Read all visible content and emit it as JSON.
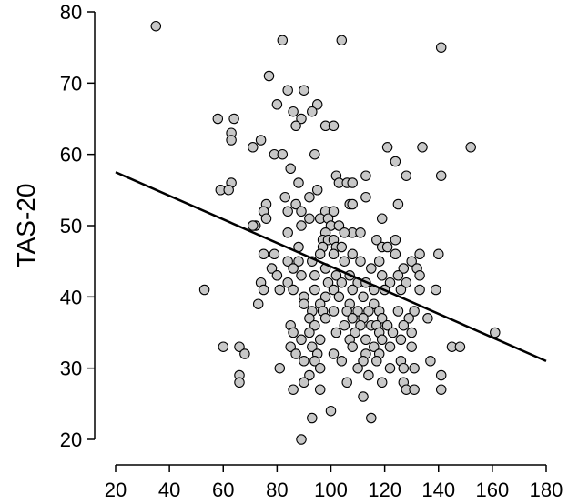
{
  "chart_data": {
    "type": "scatter",
    "title": "",
    "xlabel": "",
    "ylabel": "TAS-20",
    "xlim": [
      20,
      180
    ],
    "ylim": [
      20,
      80
    ],
    "x_ticks": [
      20,
      40,
      60,
      80,
      100,
      120,
      140,
      160,
      180
    ],
    "y_ticks": [
      20,
      30,
      40,
      50,
      60,
      70,
      80
    ],
    "grid": false,
    "legend": "none",
    "colors": {
      "point_fill": "#c8c8c8",
      "point_stroke": "#000000",
      "line": "#000000",
      "axis": "#000000"
    },
    "series": [
      {
        "marker": "circle",
        "points": [
          [
            35,
            78
          ],
          [
            82,
            76
          ],
          [
            104,
            76
          ],
          [
            141,
            75
          ],
          [
            77,
            71
          ],
          [
            84,
            69
          ],
          [
            90,
            69
          ],
          [
            80,
            67
          ],
          [
            86,
            66
          ],
          [
            95,
            67
          ],
          [
            89,
            65
          ],
          [
            93,
            66
          ],
          [
            58,
            65
          ],
          [
            64,
            65
          ],
          [
            98,
            64
          ],
          [
            101,
            64
          ],
          [
            63,
            63
          ],
          [
            63,
            62
          ],
          [
            87,
            64
          ],
          [
            74,
            62
          ],
          [
            71,
            61
          ],
          [
            121,
            61
          ],
          [
            134,
            61
          ],
          [
            152,
            61
          ],
          [
            79,
            60
          ],
          [
            82,
            60
          ],
          [
            94,
            60
          ],
          [
            124,
            59
          ],
          [
            85,
            58
          ],
          [
            128,
            57
          ],
          [
            102,
            57
          ],
          [
            113,
            57
          ],
          [
            141,
            57
          ],
          [
            63,
            56
          ],
          [
            88,
            56
          ],
          [
            103,
            56
          ],
          [
            106,
            56
          ],
          [
            108,
            56
          ],
          [
            59,
            55
          ],
          [
            62,
            55
          ],
          [
            95,
            55
          ],
          [
            83,
            54
          ],
          [
            92,
            54
          ],
          [
            113,
            54
          ],
          [
            76,
            53
          ],
          [
            87,
            53
          ],
          [
            107,
            53
          ],
          [
            108,
            53
          ],
          [
            125,
            53
          ],
          [
            84,
            52
          ],
          [
            89,
            52
          ],
          [
            98,
            52
          ],
          [
            101,
            52
          ],
          [
            75,
            52
          ],
          [
            96,
            51
          ],
          [
            99,
            51
          ],
          [
            119,
            51
          ],
          [
            76,
            51
          ],
          [
            92,
            51
          ],
          [
            72,
            50
          ],
          [
            89,
            50
          ],
          [
            100,
            50
          ],
          [
            103,
            50
          ],
          [
            71,
            50
          ],
          [
            98,
            49
          ],
          [
            108,
            49
          ],
          [
            111,
            49
          ],
          [
            84,
            49
          ],
          [
            105,
            49
          ],
          [
            97,
            48
          ],
          [
            99,
            48
          ],
          [
            101,
            48
          ],
          [
            117,
            48
          ],
          [
            124,
            48
          ],
          [
            97,
            47
          ],
          [
            102,
            47
          ],
          [
            104,
            47
          ],
          [
            119,
            47
          ],
          [
            88,
            47
          ],
          [
            121,
            47
          ],
          [
            75,
            46
          ],
          [
            79,
            46
          ],
          [
            96,
            46
          ],
          [
            101,
            46
          ],
          [
            108,
            46
          ],
          [
            124,
            46
          ],
          [
            133,
            46
          ],
          [
            140,
            46
          ],
          [
            84,
            45
          ],
          [
            88,
            45
          ],
          [
            93,
            45
          ],
          [
            105,
            45
          ],
          [
            111,
            45
          ],
          [
            130,
            45
          ],
          [
            118,
            45
          ],
          [
            78,
            44
          ],
          [
            86,
            44
          ],
          [
            98,
            44
          ],
          [
            115,
            44
          ],
          [
            127,
            44
          ],
          [
            132,
            44
          ],
          [
            80,
            43
          ],
          [
            89,
            43
          ],
          [
            94,
            43
          ],
          [
            102,
            43
          ],
          [
            107,
            43
          ],
          [
            119,
            43
          ],
          [
            125,
            43
          ],
          [
            133,
            43
          ],
          [
            74,
            42
          ],
          [
            84,
            42
          ],
          [
            99,
            42
          ],
          [
            104,
            42
          ],
          [
            110,
            42
          ],
          [
            113,
            42
          ],
          [
            122,
            42
          ],
          [
            128,
            42
          ],
          [
            53,
            41
          ],
          [
            75,
            41
          ],
          [
            81,
            41
          ],
          [
            86,
            41
          ],
          [
            94,
            41
          ],
          [
            101,
            41
          ],
          [
            108,
            41
          ],
          [
            116,
            41
          ],
          [
            120,
            41
          ],
          [
            126,
            41
          ],
          [
            133,
            41
          ],
          [
            139,
            41
          ],
          [
            90,
            40
          ],
          [
            98,
            40
          ],
          [
            103,
            40
          ],
          [
            112,
            40
          ],
          [
            96,
            39
          ],
          [
            107,
            39
          ],
          [
            116,
            39
          ],
          [
            73,
            39
          ],
          [
            90,
            39
          ],
          [
            93,
            38
          ],
          [
            97,
            38
          ],
          [
            101,
            38
          ],
          [
            106,
            38
          ],
          [
            110,
            38
          ],
          [
            114,
            38
          ],
          [
            118,
            38
          ],
          [
            125,
            38
          ],
          [
            131,
            38
          ],
          [
            92,
            37
          ],
          [
            98,
            37
          ],
          [
            108,
            37
          ],
          [
            112,
            37
          ],
          [
            119,
            37
          ],
          [
            129,
            37
          ],
          [
            136,
            37
          ],
          [
            85,
            36
          ],
          [
            94,
            36
          ],
          [
            105,
            36
          ],
          [
            111,
            36
          ],
          [
            115,
            36
          ],
          [
            117,
            36
          ],
          [
            121,
            36
          ],
          [
            127,
            36
          ],
          [
            86,
            35
          ],
          [
            92,
            35
          ],
          [
            102,
            35
          ],
          [
            109,
            35
          ],
          [
            118,
            35
          ],
          [
            123,
            35
          ],
          [
            130,
            35
          ],
          [
            161,
            35
          ],
          [
            89,
            34
          ],
          [
            96,
            34
          ],
          [
            107,
            34
          ],
          [
            113,
            34
          ],
          [
            119,
            34
          ],
          [
            126,
            34
          ],
          [
            60,
            33
          ],
          [
            66,
            33
          ],
          [
            85,
            33
          ],
          [
            93,
            33
          ],
          [
            108,
            33
          ],
          [
            116,
            33
          ],
          [
            122,
            33
          ],
          [
            130,
            33
          ],
          [
            145,
            33
          ],
          [
            148,
            33
          ],
          [
            68,
            32
          ],
          [
            87,
            32
          ],
          [
            95,
            32
          ],
          [
            101,
            32
          ],
          [
            113,
            32
          ],
          [
            118,
            32
          ],
          [
            90,
            31
          ],
          [
            94,
            31
          ],
          [
            104,
            31
          ],
          [
            112,
            31
          ],
          [
            117,
            31
          ],
          [
            126,
            31
          ],
          [
            137,
            31
          ],
          [
            81,
            30
          ],
          [
            96,
            30
          ],
          [
            110,
            30
          ],
          [
            122,
            30
          ],
          [
            127,
            30
          ],
          [
            131,
            30
          ],
          [
            66,
            29
          ],
          [
            92,
            29
          ],
          [
            114,
            29
          ],
          [
            141,
            29
          ],
          [
            66,
            28
          ],
          [
            90,
            28
          ],
          [
            106,
            28
          ],
          [
            119,
            28
          ],
          [
            127,
            28
          ],
          [
            86,
            27
          ],
          [
            96,
            27
          ],
          [
            128,
            27
          ],
          [
            131,
            27
          ],
          [
            141,
            27
          ],
          [
            112,
            26
          ],
          [
            100,
            24
          ],
          [
            93,
            23
          ],
          [
            115,
            23
          ],
          [
            89,
            20
          ]
        ]
      }
    ],
    "regression_line": {
      "x": [
        20,
        180
      ],
      "y": [
        57.5,
        31
      ]
    }
  }
}
